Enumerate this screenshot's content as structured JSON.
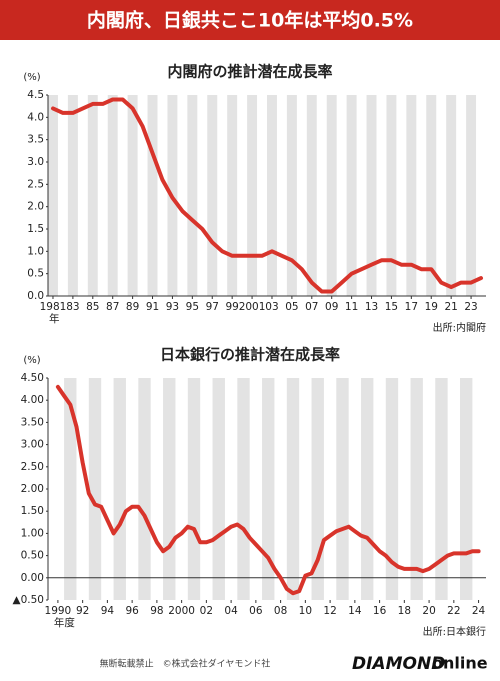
{
  "title": "内閣府、日銀共ここ10年は平均0.5%",
  "chart_data": [
    {
      "type": "line",
      "title": "内閣府の推計潜在成長率",
      "y_unit": "(%)",
      "x_unit": "年",
      "source": "出所:内閣府",
      "color": "#d8342b",
      "x": [
        1981,
        1982,
        1983,
        1984,
        1985,
        1986,
        1987,
        1988,
        1989,
        1990,
        1991,
        1992,
        1993,
        1994,
        1995,
        1996,
        1997,
        1998,
        1999,
        2000,
        2001,
        2002,
        2003,
        2004,
        2005,
        2006,
        2007,
        2008,
        2009,
        2010,
        2011,
        2012,
        2013,
        2014,
        2015,
        2016,
        2017,
        2018,
        2019,
        2020,
        2021,
        2022,
        2023,
        2024
      ],
      "values": [
        4.2,
        4.1,
        4.1,
        4.2,
        4.3,
        4.3,
        4.4,
        4.4,
        4.2,
        3.8,
        3.2,
        2.6,
        2.2,
        1.9,
        1.7,
        1.5,
        1.2,
        1.0,
        0.9,
        0.9,
        0.9,
        0.9,
        1.0,
        0.9,
        0.8,
        0.6,
        0.3,
        0.1,
        0.1,
        0.3,
        0.5,
        0.6,
        0.7,
        0.8,
        0.8,
        0.7,
        0.7,
        0.6,
        0.6,
        0.3,
        0.2,
        0.3,
        0.3,
        0.4
      ],
      "xlim": [
        1980.5,
        2024.5
      ],
      "xticks": [
        {
          "value": 1981,
          "label": "1981"
        },
        {
          "value": 1983,
          "label": "83"
        },
        {
          "value": 1985,
          "label": "85"
        },
        {
          "value": 1987,
          "label": "87"
        },
        {
          "value": 1989,
          "label": "89"
        },
        {
          "value": 1991,
          "label": "91"
        },
        {
          "value": 1993,
          "label": "93"
        },
        {
          "value": 1995,
          "label": "95"
        },
        {
          "value": 1997,
          "label": "97"
        },
        {
          "value": 1999,
          "label": "99"
        },
        {
          "value": 2001,
          "label": "2001"
        },
        {
          "value": 2003,
          "label": "03"
        },
        {
          "value": 2005,
          "label": "05"
        },
        {
          "value": 2007,
          "label": "07"
        },
        {
          "value": 2009,
          "label": "09"
        },
        {
          "value": 2011,
          "label": "11"
        },
        {
          "value": 2013,
          "label": "13"
        },
        {
          "value": 2015,
          "label": "15"
        },
        {
          "value": 2017,
          "label": "17"
        },
        {
          "value": 2019,
          "label": "19"
        },
        {
          "value": 2021,
          "label": "21"
        },
        {
          "value": 2023,
          "label": "23"
        }
      ],
      "ylim": [
        0,
        4.5
      ],
      "yticks": [
        {
          "value": 0,
          "label": "0.0"
        },
        0.5,
        {
          "value": 1,
          "label": "1.0"
        },
        1.5,
        {
          "value": 2,
          "label": "2.0"
        },
        2.5,
        {
          "value": 3,
          "label": "3.0"
        },
        3.5,
        {
          "value": 4,
          "label": "4.0"
        },
        4.5
      ]
    },
    {
      "type": "line",
      "title": "日本銀行の推計潜在成長率",
      "y_unit": "(%)",
      "x_unit": "年度",
      "source": "出所:日本銀行",
      "color": "#d8342b",
      "x": [
        1990,
        1990.5,
        1991,
        1991.5,
        1992,
        1992.5,
        1993,
        1993.5,
        1994,
        1994.5,
        1995,
        1995.5,
        1996,
        1996.5,
        1997,
        1997.5,
        1998,
        1998.5,
        1999,
        1999.5,
        2000,
        2000.5,
        2001,
        2001.5,
        2002,
        2002.5,
        2003,
        2003.5,
        2004,
        2004.5,
        2005,
        2005.5,
        2006,
        2006.5,
        2007,
        2007.5,
        2008,
        2008.5,
        2009,
        2009.5,
        2010,
        2010.5,
        2011,
        2011.5,
        2012,
        2012.5,
        2013,
        2013.5,
        2014,
        2014.5,
        2015,
        2015.5,
        2016,
        2016.5,
        2017,
        2017.5,
        2018,
        2018.5,
        2019,
        2019.5,
        2020,
        2020.5,
        2021,
        2021.5,
        2022,
        2022.5,
        2023,
        2023.5,
        2024
      ],
      "values": [
        4.3,
        4.1,
        3.9,
        3.4,
        2.6,
        1.9,
        1.65,
        1.6,
        1.3,
        1.0,
        1.2,
        1.5,
        1.6,
        1.6,
        1.4,
        1.1,
        0.8,
        0.6,
        0.7,
        0.9,
        1.0,
        1.15,
        1.1,
        0.8,
        0.8,
        0.85,
        0.95,
        1.05,
        1.15,
        1.2,
        1.1,
        0.9,
        0.75,
        0.6,
        0.45,
        0.2,
        0.0,
        -0.25,
        -0.35,
        -0.3,
        0.05,
        0.1,
        0.4,
        0.85,
        0.95,
        1.05,
        1.1,
        1.15,
        1.05,
        0.95,
        0.9,
        0.75,
        0.6,
        0.5,
        0.35,
        0.25,
        0.2,
        0.2,
        0.2,
        0.15,
        0.2,
        0.3,
        0.4,
        0.5,
        0.55,
        0.55,
        0.55,
        0.6,
        0.6
      ],
      "xlim": [
        1989.2,
        2024.6
      ],
      "xticks": [
        {
          "value": 1990,
          "label": "1990"
        },
        {
          "value": 1992,
          "label": "92"
        },
        {
          "value": 1994,
          "label": "94"
        },
        {
          "value": 1996,
          "label": "96"
        },
        {
          "value": 1998,
          "label": "98"
        },
        {
          "value": 2000,
          "label": "2000"
        },
        {
          "value": 2002,
          "label": "02"
        },
        {
          "value": 2004,
          "label": "04"
        },
        {
          "value": 2006,
          "label": "06"
        },
        {
          "value": 2008,
          "label": "08"
        },
        {
          "value": 2010,
          "label": "10"
        },
        {
          "value": 2012,
          "label": "12"
        },
        {
          "value": 2014,
          "label": "14"
        },
        {
          "value": 2016,
          "label": "16"
        },
        {
          "value": 2018,
          "label": "18"
        },
        {
          "value": 2020,
          "label": "20"
        },
        {
          "value": 2022,
          "label": "22"
        },
        {
          "value": 2024,
          "label": "24"
        }
      ],
      "ylim": [
        -0.5,
        4.5
      ],
      "yticks": [
        {
          "value": -0.5,
          "label": "▲0.50"
        },
        {
          "value": 0,
          "label": "0.00"
        },
        {
          "value": 0.5,
          "label": "0.50"
        },
        {
          "value": 1,
          "label": "1.00"
        },
        {
          "value": 1.5,
          "label": "1.50"
        },
        {
          "value": 2,
          "label": "2.00"
        },
        {
          "value": 2.5,
          "label": "2.50"
        },
        {
          "value": 3,
          "label": "3.00"
        },
        {
          "value": 3.5,
          "label": "3.50"
        },
        {
          "value": 4,
          "label": "4.00"
        },
        {
          "value": 4.5,
          "label": "4.50"
        }
      ]
    }
  ],
  "footer": {
    "notice": "無断転載禁止　©株式会社ダイヤモンド社",
    "logo_bold": "DIAMOND",
    "logo_light": "online"
  }
}
